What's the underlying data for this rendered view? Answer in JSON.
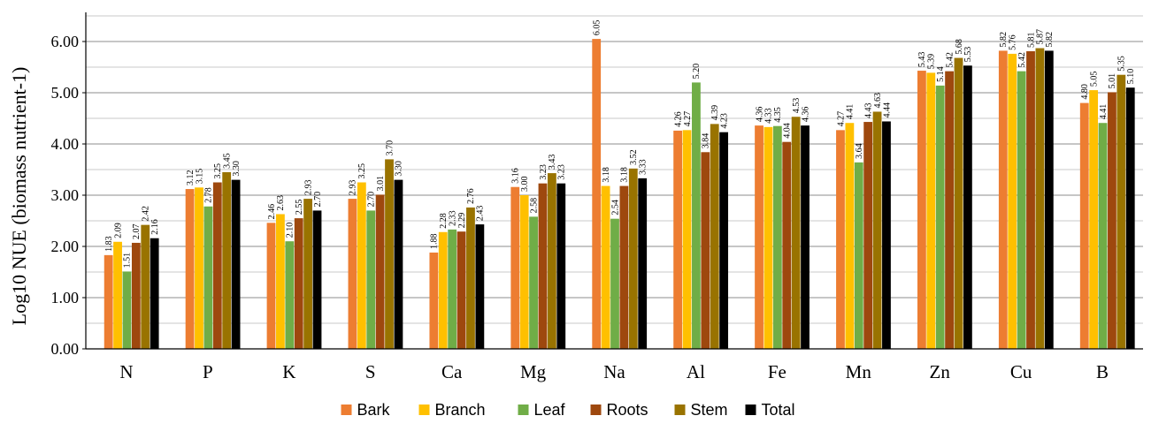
{
  "chart_data": {
    "type": "bar",
    "ylabel": "Log10 NUE (biomass nutrient-1)",
    "xlabel": "",
    "ylim": [
      0,
      6.5
    ],
    "yticks": [
      "0.00",
      "1.00",
      "2.00",
      "3.00",
      "4.00",
      "5.00",
      "6.00"
    ],
    "grid": true,
    "legend_position": "bottom",
    "categories": [
      "N",
      "P",
      "K",
      "S",
      "Ca",
      "Mg",
      "Na",
      "Al",
      "Fe",
      "Mn",
      "Zn",
      "Cu",
      "B"
    ],
    "series": [
      {
        "name": "Bark",
        "color": "#ED7D31",
        "values": [
          1.83,
          3.12,
          2.46,
          2.93,
          1.88,
          3.16,
          6.05,
          4.26,
          4.36,
          4.27,
          5.43,
          5.82,
          4.8
        ]
      },
      {
        "name": "Branch",
        "color": "#FFC000",
        "values": [
          2.09,
          3.15,
          2.63,
          3.25,
          2.28,
          3.0,
          3.18,
          4.27,
          4.33,
          4.41,
          5.39,
          5.76,
          5.05
        ]
      },
      {
        "name": "Leaf",
        "color": "#70AD47",
        "values": [
          1.51,
          2.78,
          2.1,
          2.7,
          2.33,
          2.58,
          2.54,
          5.2,
          4.35,
          3.64,
          5.14,
          5.42,
          4.41
        ]
      },
      {
        "name": "Roots",
        "color": "#9E480E",
        "values": [
          2.07,
          3.25,
          2.55,
          3.01,
          2.29,
          3.23,
          3.18,
          3.84,
          4.04,
          4.43,
          5.42,
          5.81,
          5.01
        ]
      },
      {
        "name": "Stem",
        "color": "#997300",
        "values": [
          2.42,
          3.45,
          2.93,
          3.7,
          2.76,
          3.43,
          3.52,
          4.39,
          4.53,
          4.63,
          5.68,
          5.87,
          5.35
        ]
      },
      {
        "name": "Total",
        "color": "#000000",
        "values": [
          2.16,
          3.3,
          2.7,
          3.3,
          2.43,
          3.23,
          3.33,
          4.23,
          4.36,
          4.44,
          5.53,
          5.82,
          5.1
        ]
      }
    ]
  }
}
